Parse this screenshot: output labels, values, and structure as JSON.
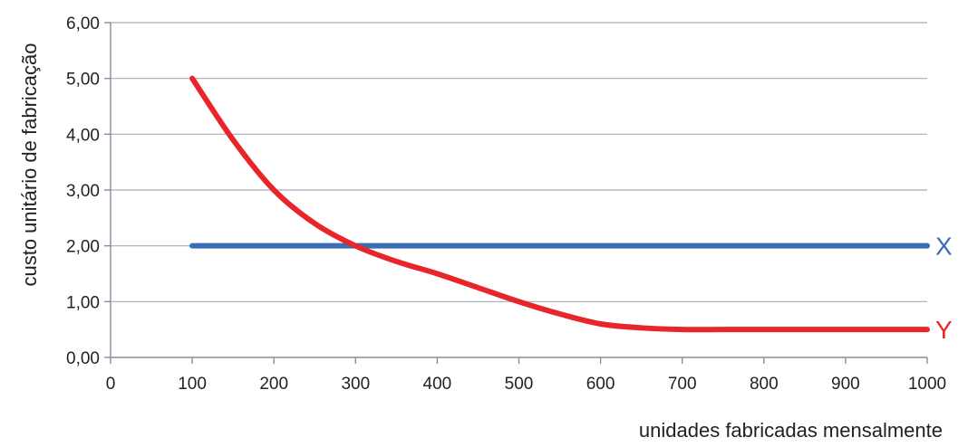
{
  "chart_data": {
    "type": "line",
    "xlabel": "unidades fabricadas mensalmente",
    "ylabel": "custo unitário de fabricação",
    "xlim": [
      0,
      1000
    ],
    "ylim": [
      0,
      6
    ],
    "x_ticks": [
      "0",
      "100",
      "200",
      "300",
      "400",
      "500",
      "600",
      "700",
      "800",
      "900",
      "1000"
    ],
    "y_ticks": [
      "0,00",
      "1,00",
      "2,00",
      "3,00",
      "4,00",
      "5,00",
      "6,00"
    ],
    "grid": "horizontal",
    "series": [
      {
        "name": "X",
        "color": "#3a6db5",
        "x": [
          100,
          1000
        ],
        "y": [
          2.0,
          2.0
        ]
      },
      {
        "name": "Y",
        "color": "#e8262a",
        "x": [
          100,
          150,
          200,
          250,
          300,
          350,
          400,
          450,
          500,
          550,
          600,
          650,
          700,
          750,
          800,
          850,
          900,
          950,
          1000
        ],
        "y": [
          5.0,
          3.9,
          3.0,
          2.4,
          2.0,
          1.72,
          1.5,
          1.25,
          1.0,
          0.78,
          0.6,
          0.53,
          0.5,
          0.5,
          0.5,
          0.5,
          0.5,
          0.5,
          0.5
        ]
      }
    ]
  }
}
